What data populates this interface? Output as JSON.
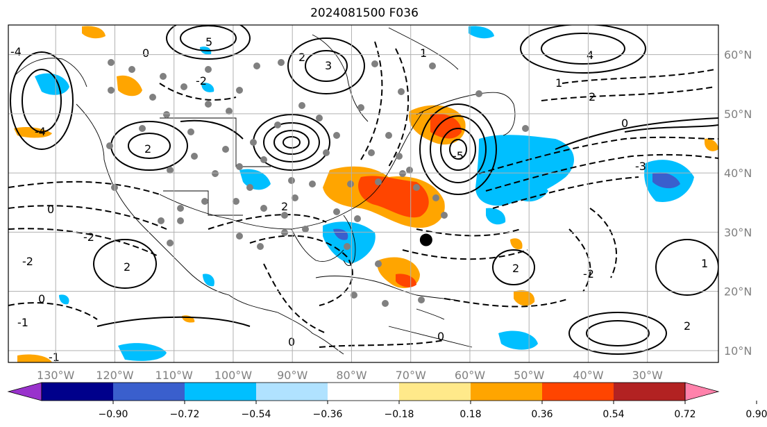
{
  "title": "2024081500 F036",
  "map": {
    "lon_range": [
      -138,
      -18
    ],
    "lat_range": [
      8,
      65
    ],
    "lat_ticks": [
      {
        "value": 10,
        "label": "10°N"
      },
      {
        "value": 20,
        "label": "20°N"
      },
      {
        "value": 30,
        "label": "30°N"
      },
      {
        "value": 40,
        "label": "40°N"
      },
      {
        "value": 50,
        "label": "50°N"
      },
      {
        "value": 60,
        "label": "60°N"
      }
    ],
    "lon_ticks": [
      {
        "value": -130,
        "label": "130°W"
      },
      {
        "value": -120,
        "label": "120°W"
      },
      {
        "value": -110,
        "label": "110°W"
      },
      {
        "value": -100,
        "label": "100°W"
      },
      {
        "value": -90,
        "label": "90°W"
      },
      {
        "value": -80,
        "label": "80°W"
      },
      {
        "value": -70,
        "label": "70°W"
      },
      {
        "value": -60,
        "label": "60°W"
      },
      {
        "value": -50,
        "label": "50°W"
      },
      {
        "value": -40,
        "label": "40°W"
      },
      {
        "value": -30,
        "label": "30°W"
      }
    ],
    "storm_center": {
      "lon": -67.4,
      "lat": 28.7
    },
    "contour_labels": [
      "-5",
      "-4",
      "-3",
      "-2",
      "-1",
      "0",
      "1",
      "2",
      "3",
      "4",
      "5"
    ]
  },
  "colorbar": {
    "ticks": [
      "−0.90",
      "−0.72",
      "−0.54",
      "−0.36",
      "−0.18",
      "0.18",
      "0.36",
      "0.54",
      "0.72",
      "0.90"
    ],
    "colors": [
      "#9932cc",
      "#00008b",
      "#3a5fcd",
      "#00bfff",
      "#b0e2ff",
      "#ffffff",
      "#ffe98a",
      "#ffa500",
      "#ff4500",
      "#b22222",
      "#ff82ab"
    ]
  }
}
